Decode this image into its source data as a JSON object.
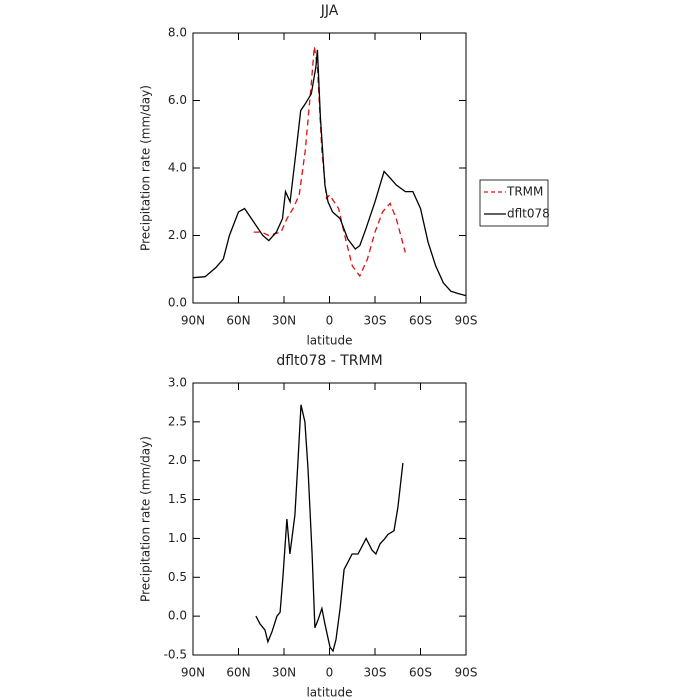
{
  "chart_data": [
    {
      "type": "line",
      "title": "JJA",
      "x_label": "latitude",
      "y_label": "Precipitation rate (mm/day)",
      "xlim": [
        90,
        -90
      ],
      "xticks": [
        {
          "value": 90,
          "label": "90N"
        },
        {
          "value": 60,
          "label": "60N"
        },
        {
          "value": 30,
          "label": "30N"
        },
        0,
        {
          "value": -30,
          "label": "30S"
        },
        {
          "value": -60,
          "label": "60S"
        },
        {
          "value": -90,
          "label": "90S"
        }
      ],
      "ylim": [
        0,
        8
      ],
      "yticks": [
        {
          "value": 0,
          "label": "0.0"
        },
        {
          "value": 2,
          "label": "2.0"
        },
        {
          "value": 4,
          "label": "4.0"
        },
        {
          "value": 6,
          "label": "6.0"
        },
        {
          "value": 8,
          "label": "8.0"
        }
      ],
      "legend": "right",
      "series": [
        {
          "name": "TRMM",
          "color": "#e01010",
          "line_style": "dashed",
          "x": [
            50,
            45,
            40,
            36,
            32,
            28,
            24,
            20,
            16,
            12,
            10,
            8,
            5,
            2,
            0,
            -3,
            -6,
            -10,
            -15,
            -20,
            -25,
            -30,
            -35,
            -40,
            -44,
            -47,
            -50
          ],
          "values": [
            2.1,
            2.1,
            2.0,
            2.05,
            2.1,
            2.5,
            2.8,
            3.2,
            4.5,
            6.5,
            7.6,
            7.0,
            4.5,
            3.1,
            3.2,
            3.0,
            2.8,
            2.0,
            1.1,
            0.8,
            1.3,
            2.1,
            2.7,
            2.95,
            2.5,
            2.0,
            1.5
          ]
        },
        {
          "name": "dflt078",
          "color": "#000000",
          "line_style": "solid",
          "x": [
            90,
            82,
            75,
            70,
            66,
            60,
            56,
            50,
            44,
            40,
            35,
            31,
            29,
            26,
            22,
            19,
            16,
            12,
            9,
            8,
            6,
            3,
            1,
            -2,
            -7,
            -12,
            -17,
            -20,
            -24,
            -30,
            -36,
            -40,
            -44,
            -50,
            -55,
            -60,
            -65,
            -70,
            -75,
            -80,
            -85,
            -90
          ],
          "values": [
            0.75,
            0.78,
            1.05,
            1.3,
            2.0,
            2.7,
            2.8,
            2.4,
            2.0,
            1.85,
            2.1,
            2.5,
            3.3,
            3.0,
            4.5,
            5.7,
            5.9,
            6.2,
            7.0,
            7.5,
            5.5,
            3.5,
            3.0,
            2.7,
            2.5,
            1.9,
            1.6,
            1.7,
            2.2,
            3.0,
            3.9,
            3.7,
            3.5,
            3.3,
            3.3,
            2.8,
            1.8,
            1.1,
            0.6,
            0.35,
            0.28,
            0.22
          ]
        }
      ]
    },
    {
      "type": "line",
      "title": "dflt078 - TRMM",
      "x_label": "latitude",
      "y_label": "Precipitation rate (mm/day)",
      "xlim": [
        90,
        -90
      ],
      "xticks": [
        {
          "value": 90,
          "label": "90N"
        },
        {
          "value": 60,
          "label": "60N"
        },
        {
          "value": 30,
          "label": "30N"
        },
        0,
        {
          "value": -30,
          "label": "30S"
        },
        {
          "value": -60,
          "label": "60S"
        },
        {
          "value": -90,
          "label": "90S"
        }
      ],
      "ylim": [
        -0.5,
        3
      ],
      "yticks": [
        {
          "value": -0.5,
          "label": "-0.5"
        },
        {
          "value": 0,
          "label": "0.0"
        },
        {
          "value": 0.5,
          "label": "0.5"
        },
        {
          "value": 1,
          "label": "1.0"
        },
        {
          "value": 1.5,
          "label": "1.5"
        },
        {
          "value": 2,
          "label": "2.0"
        },
        {
          "value": 2.5,
          "label": "2.5"
        },
        {
          "value": 3,
          "label": "3.0"
        }
      ],
      "series": [
        {
          "color": "#000000",
          "line_style": "solid",
          "x": [
            48.5,
            45.8,
            42.5,
            40.6,
            37.9,
            34.6,
            32.6,
            30.7,
            28.1,
            26.1,
            22.8,
            20.8,
            18.8,
            16.2,
            14.2,
            11.5,
            9.6,
            7.6,
            5,
            3,
            -0.3,
            -2.3,
            -4.3,
            -7,
            -9.6,
            -12.3,
            -14.9,
            -18.8,
            -21.5,
            -24.1,
            -28,
            -30.6,
            -33.3,
            -36.6,
            -38.5,
            -42.5,
            -45.1,
            -48.4
          ],
          "values": [
            0.0,
            -0.1,
            -0.18,
            -0.33,
            -0.2,
            0.0,
            0.05,
            0.5,
            1.25,
            0.8,
            1.3,
            2.0,
            2.72,
            2.5,
            1.9,
            0.8,
            -0.15,
            -0.05,
            0.1,
            -0.1,
            -0.4,
            -0.45,
            -0.3,
            0.1,
            0.6,
            0.7,
            0.8,
            0.8,
            0.9,
            1.0,
            0.85,
            0.8,
            0.93,
            1.0,
            1.05,
            1.1,
            1.4,
            1.97
          ]
        }
      ]
    }
  ]
}
